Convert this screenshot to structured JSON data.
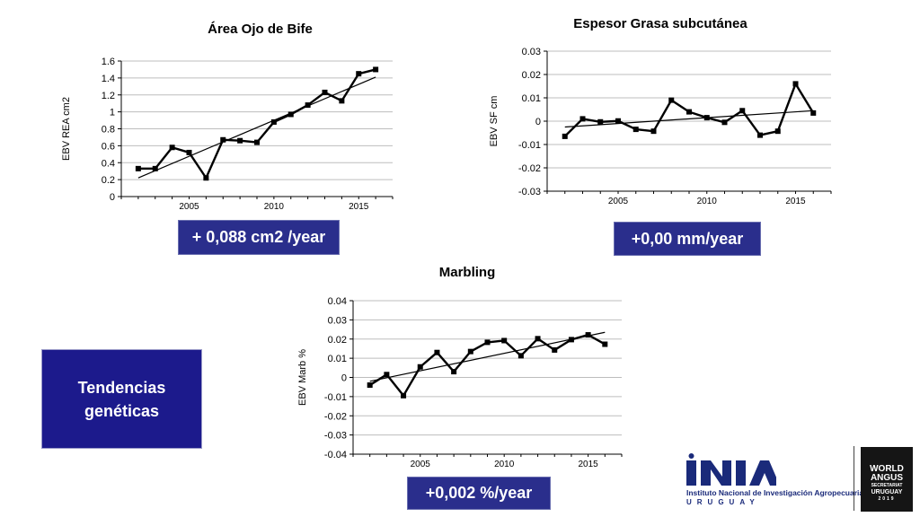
{
  "chart_data": [
    {
      "id": "rea",
      "type": "line",
      "title": "Área Ojo de Bife",
      "ylabel": "EBV REA cm2",
      "xlabel": "",
      "x": [
        2002,
        2003,
        2004,
        2005,
        2006,
        2007,
        2008,
        2009,
        2010,
        2011,
        2012,
        2013,
        2014,
        2015,
        2016
      ],
      "values": [
        0.33,
        0.33,
        0.58,
        0.52,
        0.22,
        0.67,
        0.66,
        0.64,
        0.88,
        0.97,
        1.08,
        1.23,
        1.13,
        1.45,
        1.5
      ],
      "trend": [
        0.22,
        1.41
      ],
      "xlim": [
        2001,
        2017
      ],
      "ylim": [
        0,
        1.6
      ],
      "yticks": [
        "0",
        "0.2",
        "0.4",
        "0.6",
        "0.8",
        "1",
        "1.2",
        "1.4",
        "1.6"
      ],
      "xticks": [
        "2005",
        "2010",
        "2015"
      ],
      "grid": true
    },
    {
      "id": "sf",
      "type": "line",
      "title": "Espesor Grasa subcutánea",
      "ylabel": "EBV SF cm",
      "xlabel": "",
      "x": [
        2002,
        2003,
        2004,
        2005,
        2006,
        2007,
        2008,
        2009,
        2010,
        2011,
        2012,
        2013,
        2014,
        2015,
        2016
      ],
      "values": [
        -0.0065,
        0.001,
        -0.0003,
        0.0001,
        -0.0035,
        -0.0043,
        0.009,
        0.004,
        0.0015,
        -0.0005,
        0.0045,
        -0.006,
        -0.0043,
        0.016,
        0.0035
      ],
      "trend": [
        -0.0025,
        0.0045
      ],
      "xlim": [
        2001,
        2017
      ],
      "ylim": [
        -0.03,
        0.03
      ],
      "yticks": [
        "0.03",
        "0.02",
        "0.01",
        "0",
        "-0.01",
        "-0.02",
        "-0.03"
      ],
      "xticks": [
        "2005",
        "2010",
        "2015"
      ],
      "grid": true
    },
    {
      "id": "marb",
      "type": "line",
      "title": "Marbling",
      "ylabel": "EBV Marb %",
      "xlabel": "",
      "x": [
        2002,
        2003,
        2004,
        2005,
        2006,
        2007,
        2008,
        2009,
        2010,
        2011,
        2012,
        2013,
        2014,
        2015,
        2016
      ],
      "values": [
        -0.004,
        0.0015,
        -0.0095,
        0.0055,
        0.013,
        0.003,
        0.0135,
        0.0183,
        0.0192,
        0.0113,
        0.0202,
        0.0143,
        0.0197,
        0.0222,
        0.0173
      ],
      "trend": [
        -0.002,
        0.0235
      ],
      "xlim": [
        2001,
        2017
      ],
      "ylim": [
        -0.04,
        0.04
      ],
      "yticks": [
        "0.04",
        "0.03",
        "0.02",
        "0.01",
        "0",
        "-0.01",
        "-0.02",
        "-0.03",
        "-0.04"
      ],
      "xticks": [
        "2005",
        "2010",
        "2015"
      ],
      "grid": true
    }
  ],
  "badges": {
    "rea": "+ 0,088 cm2 /year",
    "sf": "+0,00 mm/year",
    "marb": "+0,002 %/year"
  },
  "tendencias": "Tendencias genéticas",
  "logos": {
    "inia_name": "INIA",
    "inia_sub": "Instituto Nacional de Investigación Agropecuaria",
    "inia_country": "URUGUAY",
    "wa_line1": "WORLD",
    "wa_line2": "ANGUS",
    "wa_line3": "SECRETARIAT",
    "wa_line4": "URUGUAY",
    "wa_line5": "2019"
  },
  "colors": {
    "badge_bg": "#2a2e8c",
    "tendencias_bg": "#1c1a8c",
    "inia_blue": "#1a2a7a",
    "line": "#000000"
  }
}
